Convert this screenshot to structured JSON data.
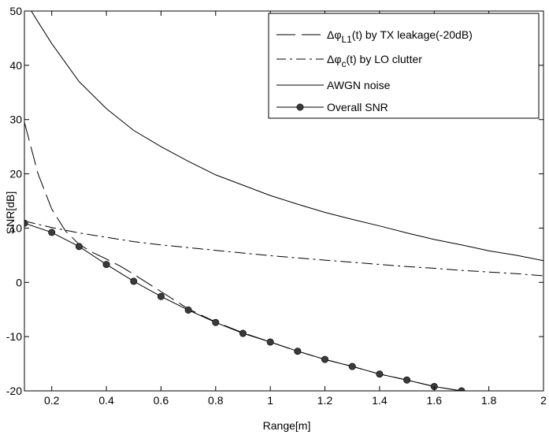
{
  "chart_data": {
    "type": "line",
    "title": "",
    "xlabel": "Range[m]",
    "ylabel": "SNR[dB]",
    "xlim": [
      0.1,
      2.0
    ],
    "ylim": [
      -20,
      50
    ],
    "x_ticks": [
      0.2,
      0.4,
      0.6,
      0.8,
      1.0,
      1.2,
      1.4,
      1.6,
      1.8,
      2.0
    ],
    "x_tick_labels": [
      "0.2",
      "0.4",
      "0.6",
      "0.8",
      "1",
      "1.2",
      "1.4",
      "1.6",
      "1.8",
      "2"
    ],
    "y_ticks": [
      -20,
      -10,
      0,
      10,
      20,
      30,
      40,
      50
    ],
    "y_tick_labels": [
      "-20",
      "-10",
      "0",
      "10",
      "20",
      "30",
      "40",
      "50"
    ],
    "grid": false,
    "legend_position": "top-right",
    "series": [
      {
        "name": "Δφ_L1(t) by TX leakage(-20dB)",
        "legend_main": "Δφ",
        "legend_sub": "L1",
        "legend_rest": "(t) by TX leakage(-20dB)",
        "line_style": "dashed",
        "marker": "none",
        "color": "#000000",
        "x": [
          0.1,
          0.15,
          0.2,
          0.25,
          0.3,
          0.35,
          0.4,
          0.45,
          0.5,
          0.6,
          0.7,
          0.8,
          0.9,
          1.0,
          1.1,
          1.2,
          1.3,
          1.4,
          1.5,
          1.6,
          1.7
        ],
        "y": [
          29.5,
          20,
          13.5,
          9.5,
          7,
          5.5,
          4.3,
          3,
          1.5,
          -1.7,
          -4.9,
          -7.3,
          -9.3,
          -11,
          -12.7,
          -14.2,
          -15.5,
          -16.9,
          -18,
          -19.2,
          -20
        ]
      },
      {
        "name": "Δφ_c(t) by LO clutter",
        "legend_main": "Δφ",
        "legend_sub": "c",
        "legend_rest": "(t) by LO clutter",
        "line_style": "dashdot",
        "marker": "none",
        "color": "#000000",
        "x": [
          0.1,
          0.2,
          0.3,
          0.4,
          0.5,
          0.6,
          0.7,
          0.8,
          0.9,
          1.0,
          1.1,
          1.2,
          1.3,
          1.4,
          1.5,
          1.6,
          1.7,
          1.8,
          1.9,
          2.0
        ],
        "y": [
          11.3,
          10.1,
          9.1,
          8.3,
          7.5,
          6.9,
          6.4,
          5.9,
          5.4,
          4.9,
          4.5,
          4.1,
          3.7,
          3.3,
          2.9,
          2.6,
          2.2,
          1.9,
          1.6,
          1.2
        ]
      },
      {
        "name": "AWGN noise",
        "legend_main": "AWGN noise",
        "legend_sub": "",
        "legend_rest": "",
        "line_style": "solid",
        "marker": "none",
        "color": "#000000",
        "x": [
          0.125,
          0.15,
          0.2,
          0.3,
          0.4,
          0.5,
          0.6,
          0.7,
          0.8,
          0.9,
          1.0,
          1.1,
          1.2,
          1.3,
          1.4,
          1.5,
          1.6,
          1.7,
          1.8,
          1.9,
          2.0
        ],
        "y": [
          50,
          48,
          44,
          37,
          32,
          28,
          25,
          22.3,
          19.8,
          17.9,
          16,
          14.4,
          12.9,
          11.6,
          10.4,
          9.1,
          7.9,
          6.9,
          5.8,
          5,
          4
        ]
      },
      {
        "name": "Overall SNR",
        "legend_main": "Overall SNR",
        "legend_sub": "",
        "legend_rest": "",
        "line_style": "solid",
        "marker": "circle",
        "color": "#000000",
        "x": [
          0.1,
          0.2,
          0.3,
          0.4,
          0.5,
          0.6,
          0.7,
          0.8,
          0.9,
          1.0,
          1.1,
          1.2,
          1.3,
          1.4,
          1.5,
          1.6,
          1.7
        ],
        "y": [
          10.9,
          9.2,
          6.6,
          3.3,
          0.2,
          -2.6,
          -5.1,
          -7.4,
          -9.4,
          -11,
          -12.7,
          -14.2,
          -15.5,
          -16.9,
          -18,
          -19.2,
          -20
        ]
      }
    ]
  }
}
